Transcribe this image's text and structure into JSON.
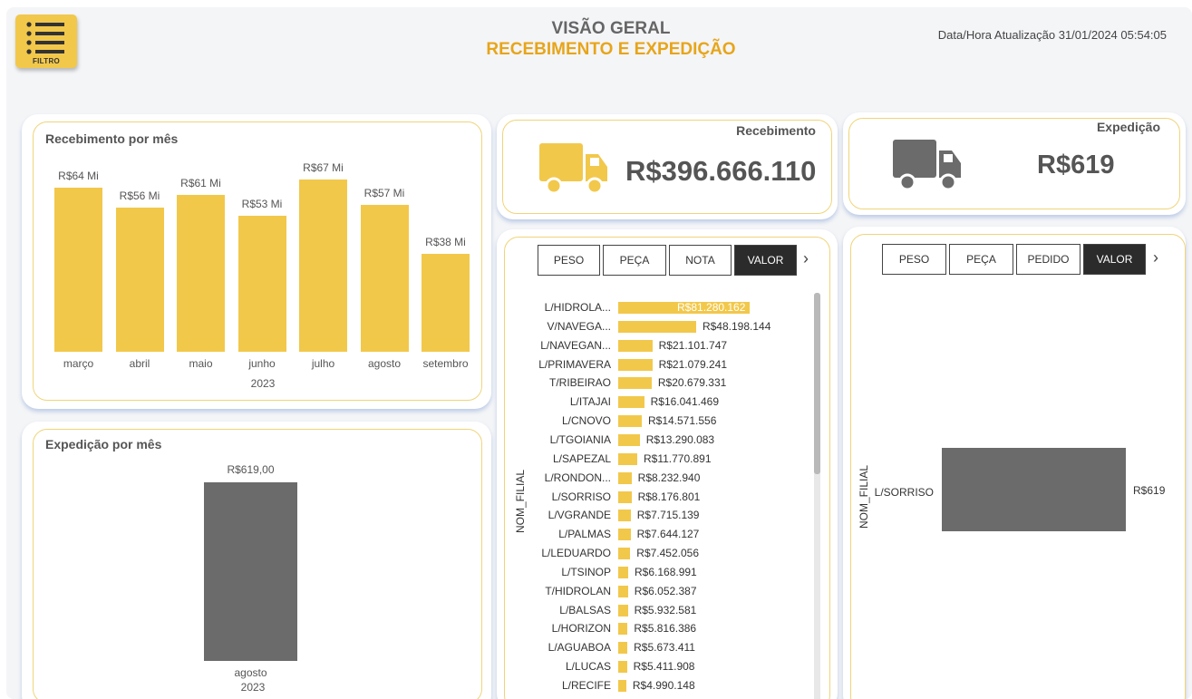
{
  "header": {
    "filter_label": "FILTRO",
    "title": "VISÃO GERAL",
    "subtitle": "RECEBIMENTO E EXPEDIÇÃO",
    "updated": "Data/Hora Atualização 31/01/2024 05:54:05"
  },
  "kpis": {
    "recebimento": {
      "label": "Recebimento",
      "value": "R$396.666.110",
      "icon": "truck-icon",
      "color": "#f2c84b"
    },
    "expedicao": {
      "label": "Expedição",
      "value": "R$619",
      "icon": "truck-icon",
      "color": "#6b6b6b"
    }
  },
  "colors": {
    "accent": "#f2c84b",
    "title_accent": "#e7a51a",
    "dark": "#2b2b2b",
    "grey_bar": "#6b6b6b"
  },
  "recebimento_chart": {
    "title": "Recebimento por mês",
    "year_label": "2023"
  },
  "expedicao_chart": {
    "title": "Expedição por mês",
    "year_label": "2023"
  },
  "filial_recebimento": {
    "axis_label": "NOM_FILIAL",
    "tabs": [
      "PESO",
      "PEÇA",
      "NOTA",
      "VALOR"
    ],
    "active_tab": "VALOR"
  },
  "filial_expedicao": {
    "axis_label": "NOM_FILIAL",
    "tabs": [
      "PESO",
      "PEÇA",
      "PEDIDO",
      "VALOR"
    ],
    "active_tab": "VALOR"
  },
  "chart_data": [
    {
      "type": "bar",
      "title": "Recebimento por mês",
      "categories": [
        "março",
        "abril",
        "maio",
        "junho",
        "julho",
        "agosto",
        "setembro"
      ],
      "values": [
        64,
        56,
        61,
        53,
        67,
        57,
        38
      ],
      "data_labels": [
        "R$64 Mi",
        "R$56 Mi",
        "R$61 Mi",
        "R$53 Mi",
        "R$67 Mi",
        "R$57 Mi",
        "R$38 Mi"
      ],
      "ylim": [
        0,
        70
      ],
      "color": "#f2c84b"
    },
    {
      "type": "bar",
      "title": "Expedição por mês",
      "categories": [
        "agosto"
      ],
      "values": [
        619
      ],
      "data_labels": [
        "R$619,00"
      ],
      "ylim": [
        0,
        619
      ],
      "color": "#6b6b6b"
    },
    {
      "type": "bar",
      "orientation": "horizontal",
      "ylabel": "NOM_FILIAL",
      "categories": [
        "L/HIDROLA...",
        "V/NAVEGA...",
        "L/NAVEGAN...",
        "L/PRIMAVERA",
        "T/RIBEIRAO",
        "L/ITAJAI",
        "L/CNOVO",
        "L/TGOIANIA",
        "L/SAPEZAL",
        "L/RONDON...",
        "L/SORRISO",
        "L/VGRANDE",
        "L/PALMAS",
        "L/LEDUARDO",
        "L/TSINOP",
        "T/HIDROLAN",
        "L/BALSAS",
        "L/HORIZON",
        "L/AGUABOA",
        "L/LUCAS",
        "L/RECIFE"
      ],
      "values": [
        81280162,
        48198144,
        21101747,
        21079241,
        20679331,
        16041469,
        14571556,
        13290083,
        11770891,
        8232940,
        8176801,
        7715139,
        7644127,
        7452056,
        6168991,
        6052387,
        5932581,
        5816386,
        5673411,
        5411908,
        4990148
      ],
      "data_labels": [
        "R$81.280.162",
        "R$48.198.144",
        "R$21.101.747",
        "R$21.079.241",
        "R$20.679.331",
        "R$16.041.469",
        "R$14.571.556",
        "R$13.290.083",
        "R$11.770.891",
        "R$8.232.940",
        "R$8.176.801",
        "R$7.715.139",
        "R$7.644.127",
        "R$7.452.056",
        "R$6.168.991",
        "R$6.052.387",
        "R$5.932.581",
        "R$5.816.386",
        "R$5.673.411",
        "R$5.411.908",
        "R$4.990.148"
      ],
      "color": "#f2c84b"
    },
    {
      "type": "bar",
      "orientation": "horizontal",
      "ylabel": "NOM_FILIAL",
      "categories": [
        "L/SORRISO"
      ],
      "values": [
        619
      ],
      "data_labels": [
        "R$619"
      ],
      "color": "#6b6b6b"
    }
  ]
}
